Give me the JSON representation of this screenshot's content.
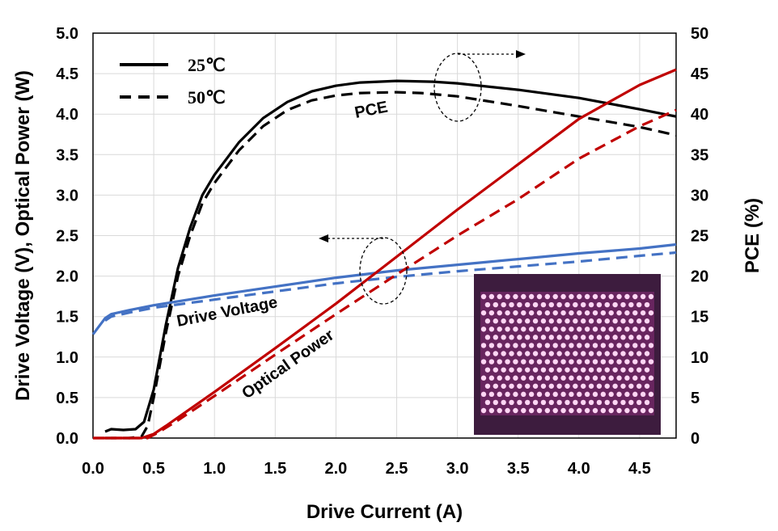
{
  "chart_data": {
    "type": "line",
    "xlabel": "Drive Current (A)",
    "ylabel_left": "Drive Voltage (V), Optical Power (W)",
    "ylabel_right": "PCE (%)",
    "xlim": [
      0,
      4.8
    ],
    "ylim_left": [
      0,
      5.0
    ],
    "ylim_right": [
      0,
      50
    ],
    "x_ticks": [
      "0.0",
      "0.5",
      "1.0",
      "1.5",
      "2.0",
      "2.5",
      "3.0",
      "3.5",
      "4.0",
      "4.5"
    ],
    "y_left_ticks": [
      "0.0",
      "0.5",
      "1.0",
      "1.5",
      "2.0",
      "2.5",
      "3.0",
      "3.5",
      "4.0",
      "4.5",
      "5.0"
    ],
    "y_right_ticks": [
      "0",
      "5",
      "10",
      "15",
      "20",
      "25",
      "30",
      "35",
      "40",
      "45",
      "50"
    ],
    "grid": true,
    "legend": {
      "position": "top-left",
      "entries": [
        {
          "label": "25℃",
          "dash": "solid"
        },
        {
          "label": "50℃",
          "dash": "dashed"
        }
      ]
    },
    "annotations": {
      "pce": "PCE",
      "drive_voltage": "Drive Voltage",
      "optical_power": "Optical Power"
    },
    "colors": {
      "pce": "#000000",
      "voltage": "#4472c4",
      "power": "#c00000"
    },
    "series": [
      {
        "name": "PCE",
        "temp": "25℃",
        "axis": "right",
        "dash": "solid",
        "x": [
          0.1,
          0.15,
          0.25,
          0.35,
          0.42,
          0.5,
          0.6,
          0.7,
          0.8,
          0.9,
          1.0,
          1.2,
          1.4,
          1.6,
          1.8,
          2.0,
          2.2,
          2.5,
          2.8,
          3.0,
          3.5,
          4.0,
          4.5,
          4.8
        ],
        "y": [
          0.8,
          1.1,
          1.0,
          1.1,
          2.0,
          6.0,
          14.0,
          21.0,
          26.0,
          30.0,
          32.5,
          36.5,
          39.5,
          41.5,
          42.8,
          43.5,
          43.9,
          44.1,
          44.0,
          43.8,
          43.0,
          42.0,
          40.6,
          39.7
        ]
      },
      {
        "name": "PCE",
        "temp": "50℃",
        "axis": "right",
        "dash": "dashed",
        "x": [
          0.1,
          0.2,
          0.3,
          0.4,
          0.45,
          0.5,
          0.6,
          0.7,
          0.8,
          0.9,
          1.0,
          1.2,
          1.4,
          1.6,
          1.8,
          2.0,
          2.2,
          2.5,
          2.7,
          3.0,
          3.5,
          4.0,
          4.5,
          4.8
        ],
        "y": [
          0.0,
          0.0,
          0.0,
          0.2,
          1.5,
          5.0,
          13.0,
          20.0,
          25.0,
          29.0,
          31.5,
          35.5,
          38.5,
          40.5,
          41.7,
          42.3,
          42.6,
          42.7,
          42.6,
          42.2,
          41.0,
          39.7,
          38.4,
          37.4
        ]
      },
      {
        "name": "Drive Voltage",
        "temp": "25℃",
        "axis": "left",
        "dash": "solid",
        "x": [
          0.0,
          0.05,
          0.1,
          0.15,
          0.3,
          0.5,
          1.0,
          1.5,
          2.0,
          2.5,
          3.0,
          3.5,
          4.0,
          4.5,
          4.8
        ],
        "y": [
          1.28,
          1.38,
          1.48,
          1.53,
          1.58,
          1.64,
          1.76,
          1.87,
          1.98,
          2.07,
          2.14,
          2.21,
          2.28,
          2.34,
          2.39
        ]
      },
      {
        "name": "Drive Voltage",
        "temp": "50℃",
        "axis": "left",
        "dash": "dashed",
        "x": [
          0.1,
          0.15,
          0.3,
          0.5,
          1.0,
          1.5,
          2.0,
          2.5,
          3.0,
          3.5,
          4.0,
          4.5,
          4.8
        ],
        "y": [
          1.45,
          1.5,
          1.55,
          1.61,
          1.71,
          1.81,
          1.91,
          1.99,
          2.06,
          2.12,
          2.18,
          2.25,
          2.29
        ]
      },
      {
        "name": "Optical Power",
        "temp": "25℃",
        "axis": "left",
        "dash": "solid",
        "x": [
          0.0,
          0.4,
          0.5,
          0.6,
          1.0,
          1.5,
          2.0,
          2.5,
          3.0,
          3.5,
          4.0,
          4.5,
          4.8
        ],
        "y": [
          0.0,
          0.0,
          0.05,
          0.15,
          0.57,
          1.11,
          1.66,
          2.24,
          2.82,
          3.38,
          3.94,
          4.36,
          4.55
        ]
      },
      {
        "name": "Optical Power",
        "temp": "50℃",
        "axis": "left",
        "dash": "dashed",
        "x": [
          0.0,
          0.45,
          0.55,
          0.7,
          1.0,
          1.5,
          2.0,
          2.5,
          3.0,
          3.5,
          4.0,
          4.5,
          4.8
        ],
        "y": [
          0.0,
          0.0,
          0.08,
          0.22,
          0.52,
          1.03,
          1.53,
          2.02,
          2.5,
          2.95,
          3.45,
          3.85,
          4.05
        ]
      }
    ]
  }
}
